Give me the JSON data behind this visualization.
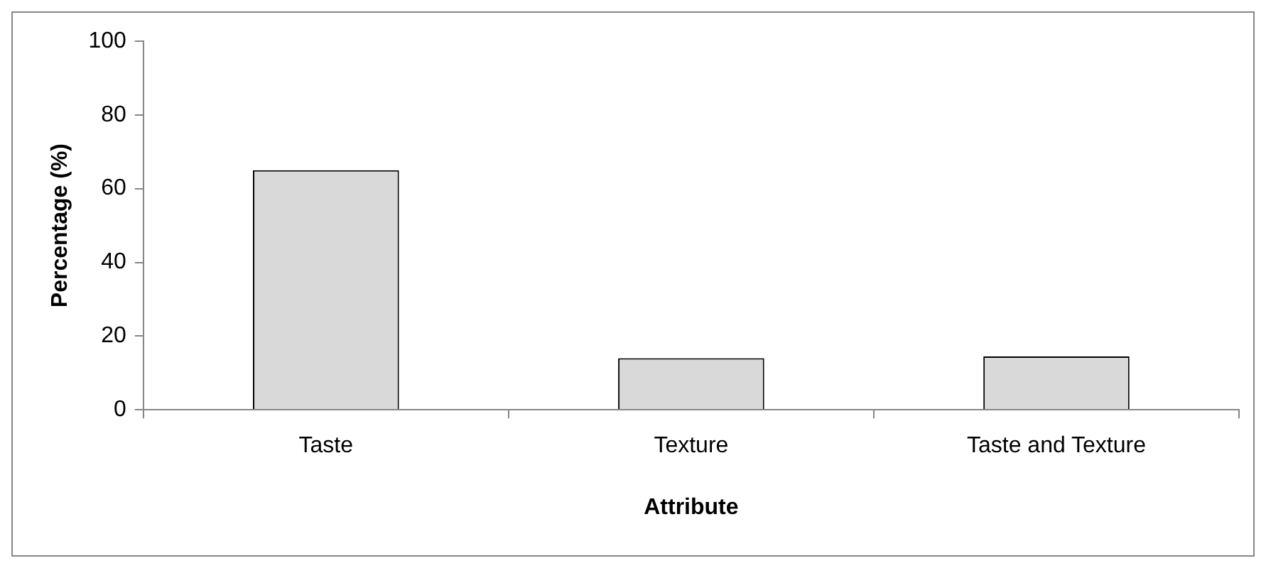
{
  "chart_data": {
    "type": "bar",
    "xlabel": "Attribute",
    "ylabel": "Percentage (%)",
    "categories": [
      "Taste",
      "Texture",
      "Taste and Texture"
    ],
    "values": [
      65,
      14,
      14.5
    ],
    "color": "#d9d9d9",
    "ylim": [
      0,
      100
    ],
    "yticks": [
      0,
      20,
      40,
      60,
      80,
      100
    ],
    "grid": false,
    "legend": false
  }
}
